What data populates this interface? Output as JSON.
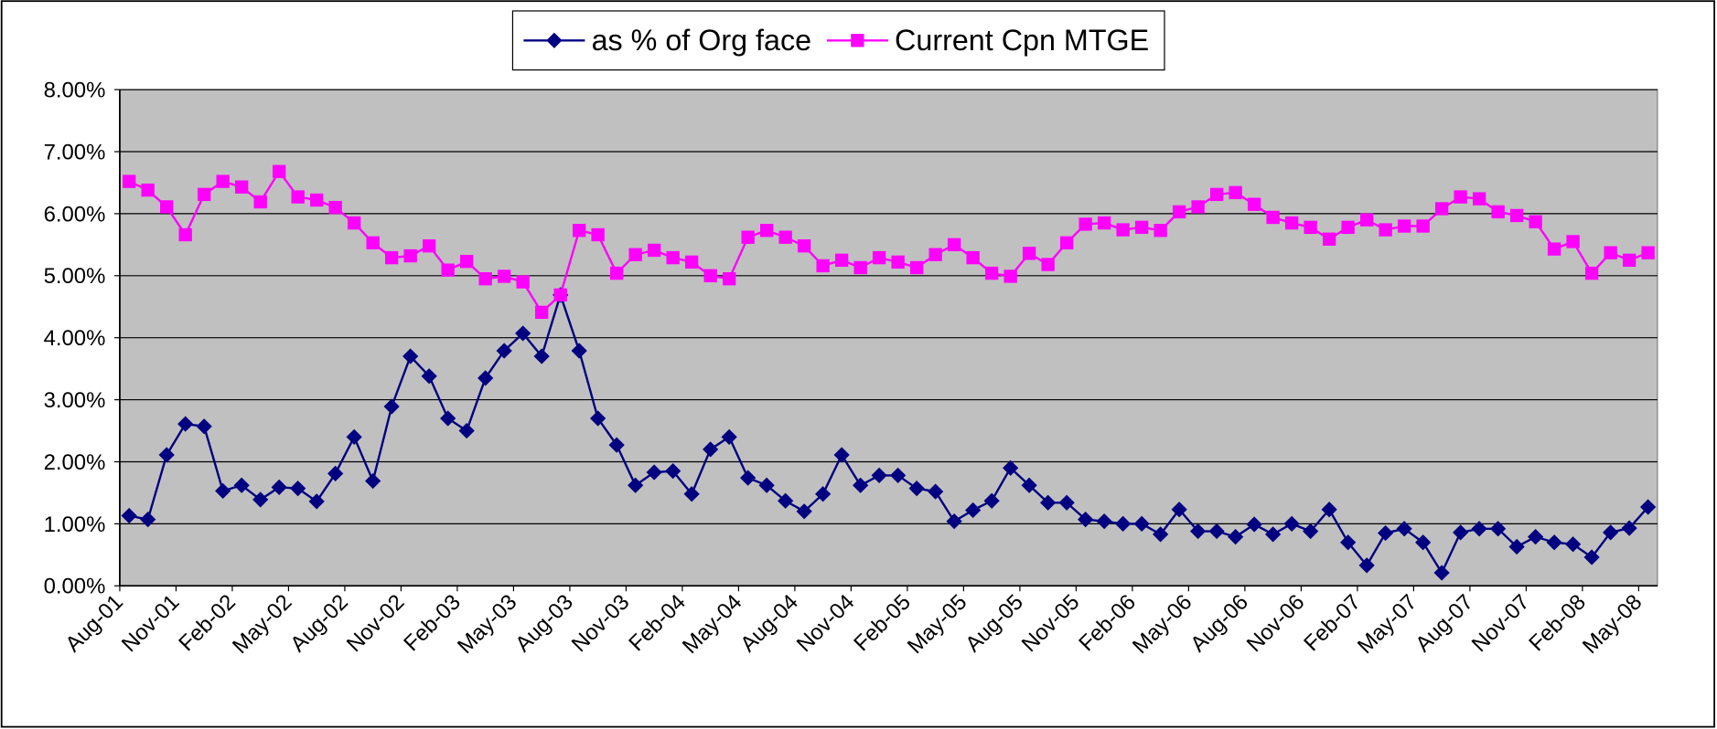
{
  "chart_data": {
    "type": "line",
    "categories": [
      "Aug-01",
      null,
      null,
      "Nov-01",
      null,
      null,
      "Feb-02",
      null,
      null,
      "May-02",
      null,
      null,
      "Aug-02",
      null,
      null,
      "Nov-02",
      null,
      null,
      "Feb-03",
      null,
      null,
      "May-03",
      null,
      null,
      "Aug-03",
      null,
      null,
      "Nov-03",
      null,
      null,
      "Feb-04",
      null,
      null,
      "May-04",
      null,
      null,
      "Aug-04",
      null,
      null,
      "Nov-04",
      null,
      null,
      "Feb-05",
      null,
      null,
      "May-05",
      null,
      null,
      "Aug-05",
      null,
      null,
      "Nov-05",
      null,
      null,
      "Feb-06",
      null,
      null,
      "May-06",
      null,
      null,
      "Aug-06",
      null,
      null,
      "Nov-06",
      null,
      null,
      "Feb-07",
      null,
      null,
      "May-07",
      null,
      null,
      "Aug-07",
      null,
      null,
      "Nov-07",
      null,
      null,
      "Feb-08",
      null,
      null,
      "May-08"
    ],
    "series": [
      {
        "name": "as % of Org face",
        "color": "#000080",
        "marker": "diamond",
        "values": [
          1.13,
          1.07,
          2.11,
          2.61,
          2.57,
          1.53,
          1.62,
          1.39,
          1.59,
          1.57,
          1.36,
          1.81,
          2.4,
          1.69,
          2.89,
          3.7,
          3.38,
          2.7,
          2.5,
          3.35,
          3.79,
          4.07,
          3.7,
          4.69,
          3.79,
          2.7,
          2.27,
          1.62,
          1.83,
          1.85,
          1.48,
          2.2,
          2.4,
          1.74,
          1.62,
          1.37,
          1.2,
          1.48,
          2.11,
          1.62,
          1.78,
          1.78,
          1.57,
          1.52,
          1.04,
          1.22,
          1.37,
          1.9,
          1.62,
          1.34,
          1.34,
          1.07,
          1.04,
          1.0,
          1.0,
          0.83,
          1.23,
          0.88,
          0.88,
          0.79,
          0.99,
          0.83,
          1.0,
          0.88,
          1.23,
          0.7,
          0.33,
          0.85,
          0.92,
          0.7,
          0.21,
          0.86,
          0.92,
          0.92,
          0.63,
          0.79,
          0.7,
          0.67,
          0.46,
          0.86,
          0.93,
          1.27
        ]
      },
      {
        "name": "Current Cpn MTGE",
        "color": "#ff00ff",
        "marker": "square",
        "values": [
          6.52,
          6.38,
          6.11,
          5.66,
          6.31,
          6.52,
          6.43,
          6.19,
          6.68,
          6.27,
          6.22,
          6.1,
          5.85,
          5.53,
          5.29,
          5.32,
          5.48,
          5.09,
          5.23,
          4.95,
          4.99,
          4.9,
          4.41,
          4.69,
          5.73,
          5.66,
          5.04,
          5.34,
          5.41,
          5.29,
          5.22,
          5.0,
          4.95,
          5.62,
          5.73,
          5.62,
          5.48,
          5.16,
          5.25,
          5.13,
          5.29,
          5.22,
          5.13,
          5.34,
          5.5,
          5.29,
          5.04,
          4.99,
          5.36,
          5.18,
          5.53,
          5.83,
          5.85,
          5.74,
          5.78,
          5.73,
          6.03,
          6.11,
          6.31,
          6.34,
          6.15,
          5.94,
          5.85,
          5.78,
          5.59,
          5.78,
          5.9,
          5.74,
          5.8,
          5.8,
          6.08,
          6.27,
          6.24,
          6.03,
          5.97,
          5.87,
          5.43,
          5.55,
          5.04,
          5.37,
          5.25,
          5.37
        ]
      }
    ],
    "ylim": [
      0,
      8
    ],
    "yticks": [
      {
        "value": 0,
        "label": "0.00%"
      },
      {
        "value": 1,
        "label": "1.00%"
      },
      {
        "value": 2,
        "label": "2.00%"
      },
      {
        "value": 3,
        "label": "3.00%"
      },
      {
        "value": 4,
        "label": "4.00%"
      },
      {
        "value": 5,
        "label": "5.00%"
      },
      {
        "value": 6,
        "label": "6.00%"
      },
      {
        "value": 7,
        "label": "7.00%"
      },
      {
        "value": 8,
        "label": "8.00%"
      }
    ],
    "grid": true,
    "plot_background": "#c0c0c0",
    "legend": "top"
  }
}
